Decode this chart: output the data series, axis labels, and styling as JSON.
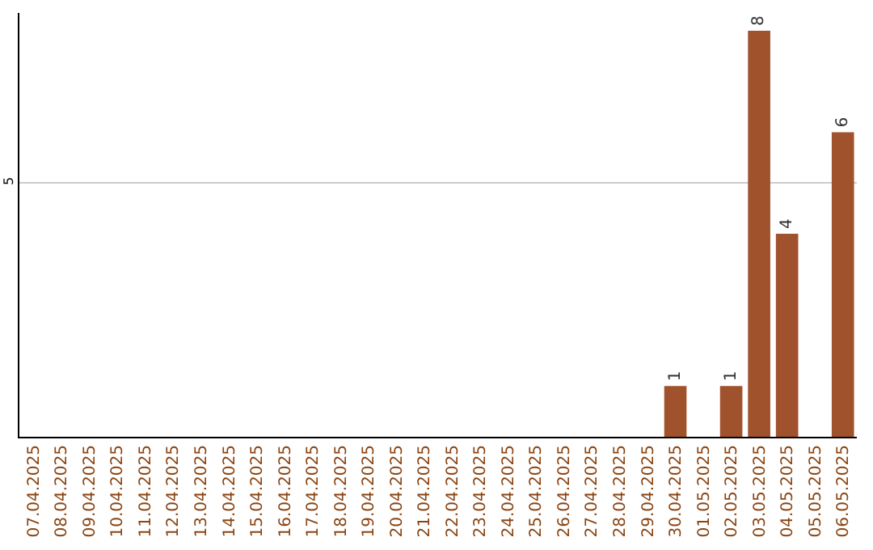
{
  "chart_data": {
    "type": "bar",
    "categories": [
      "07.04.2025",
      "08.04.2025",
      "09.04.2025",
      "10.04.2025",
      "11.04.2025",
      "12.04.2025",
      "13.04.2025",
      "14.04.2025",
      "15.04.2025",
      "16.04.2025",
      "17.04.2025",
      "18.04.2025",
      "19.04.2025",
      "20.04.2025",
      "21.04.2025",
      "22.04.2025",
      "23.04.2025",
      "24.04.2025",
      "25.04.2025",
      "26.04.2025",
      "27.04.2025",
      "28.04.2025",
      "29.04.2025",
      "30.04.2025",
      "01.05.2025",
      "02.05.2025",
      "03.05.2025",
      "04.05.2025",
      "05.05.2025",
      "06.05.2025"
    ],
    "values": [
      null,
      null,
      null,
      null,
      null,
      null,
      null,
      null,
      null,
      null,
      null,
      null,
      null,
      null,
      null,
      null,
      null,
      null,
      null,
      null,
      null,
      null,
      null,
      1,
      null,
      1,
      8,
      4,
      null,
      6
    ],
    "data_labels": true,
    "color": "#a0522d",
    "ylim": [
      0,
      8.35
    ],
    "yticks": [
      5
    ],
    "grid": "y"
  }
}
